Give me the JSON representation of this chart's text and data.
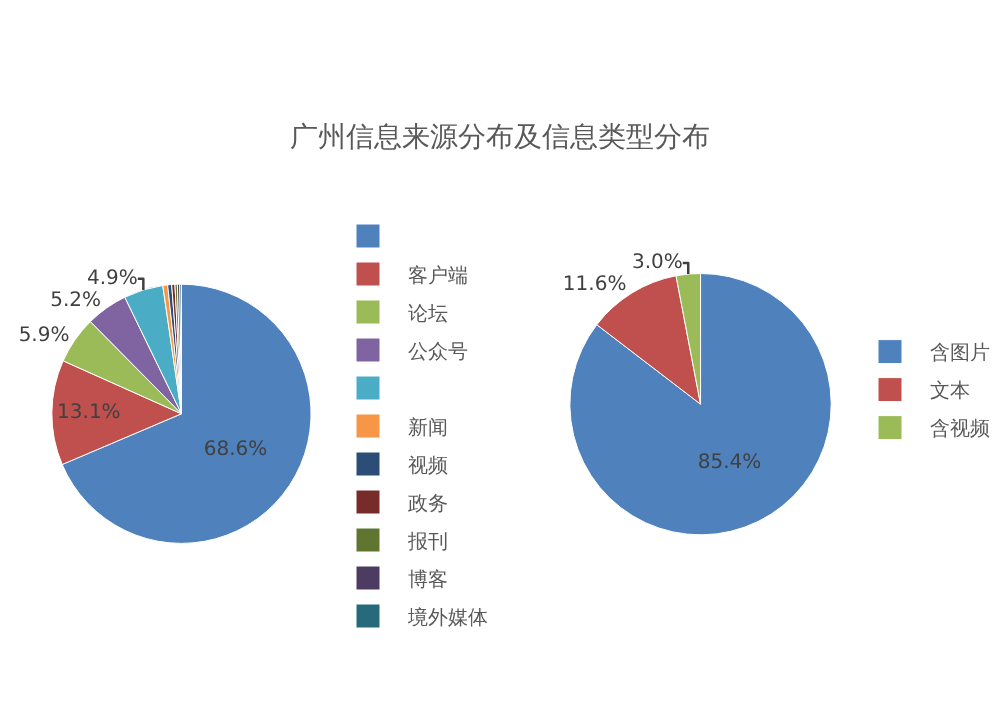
{
  "chart_data": [
    {
      "type": "pie",
      "title": "广州信息来源分布及信息类型分布",
      "categories": [
        null,
        "客户端",
        "论坛",
        "公众号",
        null,
        "新闻",
        "视频",
        "政务",
        "报刊",
        "博客",
        "境外媒体"
      ],
      "values": [
        68.6,
        13.1,
        5.9,
        5.2,
        4.9,
        0.6,
        0.5,
        0.4,
        0.3,
        0.3,
        0.2
      ],
      "value_labels": [
        "68.6%",
        "13.1%",
        "5.9%",
        "5.2%",
        "4.9%",
        null,
        null,
        null,
        null,
        null,
        null
      ],
      "colors": [
        "#4f81bd",
        "#c0504d",
        "#9bbb59",
        "#8064a2",
        "#4bacc6",
        "#f79646",
        "#2c4d75",
        "#772c2a",
        "#5f7530",
        "#4d3b62",
        "#276a7c"
      ],
      "legend": "right"
    },
    {
      "type": "pie",
      "categories": [
        "含图片",
        "文本",
        "含视频"
      ],
      "values": [
        85.4,
        11.6,
        3.0
      ],
      "value_labels": [
        "85.4%",
        "11.6%",
        "3.0%"
      ],
      "colors": [
        "#4f81bd",
        "#c0504d",
        "#9bbb59"
      ],
      "legend": "right"
    }
  ]
}
